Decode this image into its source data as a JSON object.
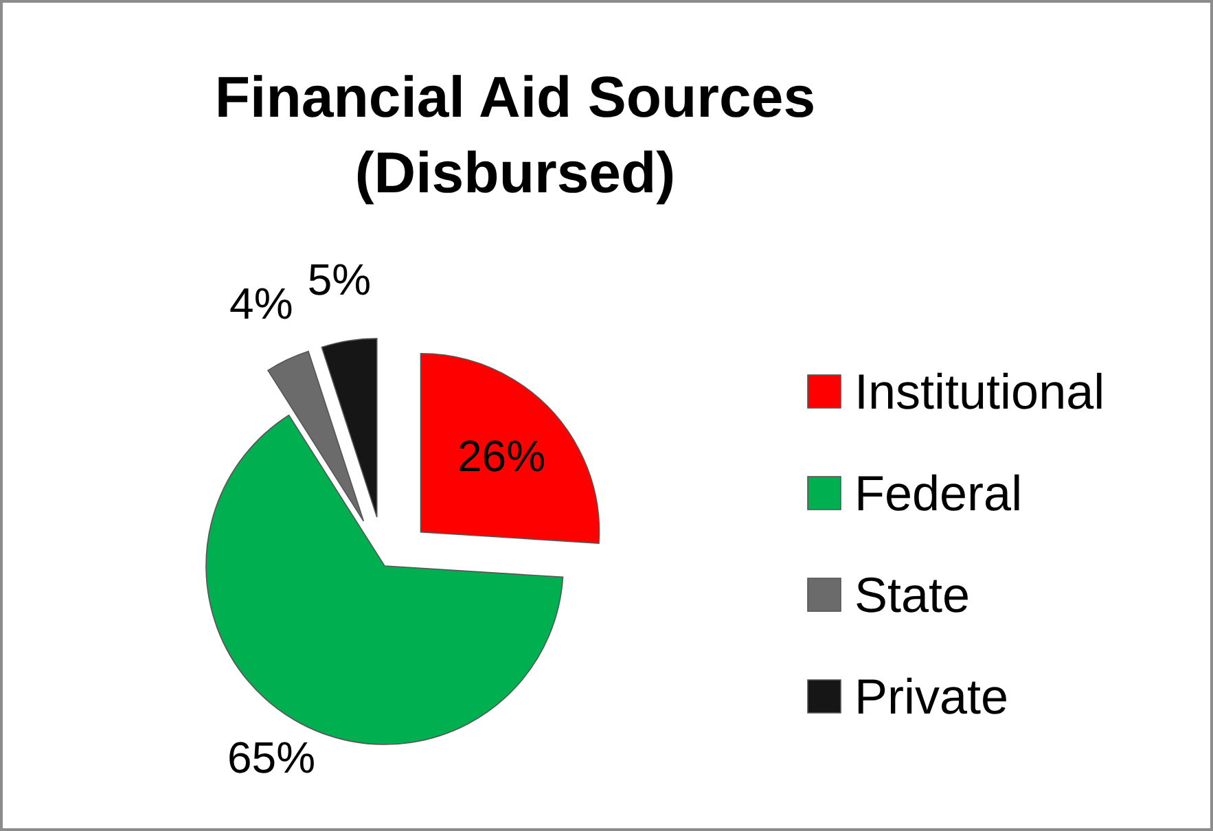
{
  "chart_data": {
    "type": "pie",
    "title": "Financial Aid Sources (Disbursed)",
    "categories": [
      "Institutional",
      "Federal",
      "State",
      "Private"
    ],
    "values": [
      26,
      65,
      4,
      5
    ],
    "colors": [
      "#ff0000",
      "#00b050",
      "#6b6b6b",
      "#161616"
    ],
    "value_labels": [
      "26%",
      "65%",
      "4%",
      "5%"
    ],
    "legend": "right"
  }
}
